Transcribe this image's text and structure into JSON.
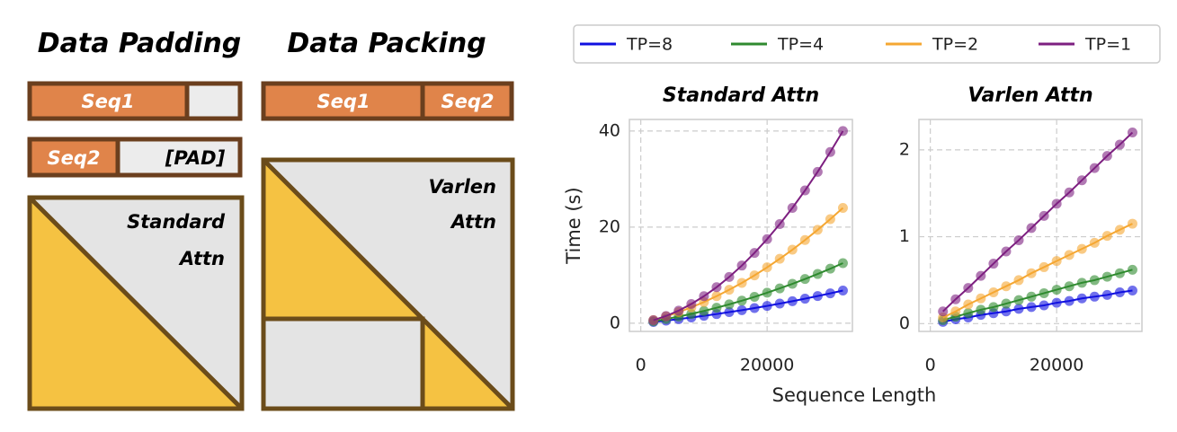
{
  "diagram": {
    "padding": {
      "title": "Data Padding",
      "seq1": "Seq1",
      "seq2": "Seq2",
      "pad": "[PAD]",
      "attn": [
        "Standard",
        "Attn"
      ]
    },
    "packing": {
      "title": "Data Packing",
      "seq1": "Seq1",
      "seq2": "Seq2",
      "attn": [
        "Varlen",
        "Attn"
      ]
    }
  },
  "chart_data": [
    {
      "type": "scatter",
      "title": "Standard Attn",
      "ylabel": "Time (s)",
      "xlabel": "Sequence Length",
      "x": [
        2000,
        4000,
        6000,
        8000,
        10000,
        12000,
        14000,
        16000,
        18000,
        20000,
        22000,
        24000,
        26000,
        28000,
        30000,
        32000
      ],
      "xlim": [
        -1800,
        33500
      ],
      "xticks": [
        0,
        20000
      ],
      "ylim": [
        -1.7,
        42.4
      ],
      "yticks": [
        0,
        20,
        40
      ],
      "grid": true,
      "series": [
        {
          "name": "TP=8",
          "color": "#1010e0",
          "values": [
            0.27,
            0.55,
            0.86,
            1.19,
            1.54,
            1.91,
            2.31,
            2.72,
            3.16,
            3.61,
            4.09,
            4.59,
            5.11,
            5.65,
            6.22,
            6.8
          ]
        },
        {
          "name": "TP=4",
          "color": "#2f8a2f",
          "values": [
            0.41,
            0.88,
            1.39,
            1.95,
            2.56,
            3.22,
            3.93,
            4.69,
            5.49,
            6.35,
            7.25,
            8.2,
            9.2,
            10.25,
            11.35,
            12.5
          ]
        },
        {
          "name": "TP=2",
          "color": "#f5a732",
          "values": [
            0.66,
            1.43,
            2.31,
            3.3,
            4.41,
            5.63,
            6.96,
            8.4,
            9.96,
            11.63,
            13.41,
            15.3,
            17.31,
            19.43,
            21.66,
            24
          ]
        },
        {
          "name": "TP=1",
          "color": "#7d1f80",
          "values": [
            0.63,
            1.5,
            2.63,
            4,
            5.63,
            7.5,
            9.63,
            12,
            14.63,
            17.5,
            20.63,
            24,
            27.63,
            31.5,
            35.63,
            40
          ]
        }
      ]
    },
    {
      "type": "scatter",
      "title": "Varlen Attn",
      "x": [
        2000,
        4000,
        6000,
        8000,
        10000,
        12000,
        14000,
        16000,
        18000,
        20000,
        22000,
        24000,
        26000,
        28000,
        30000,
        32000
      ],
      "xlim": [
        -1800,
        33500
      ],
      "xticks": [
        0,
        20000
      ],
      "ylim": [
        -0.09,
        2.35
      ],
      "yticks": [
        0,
        1,
        2
      ],
      "grid": true,
      "series": [
        {
          "color": "#1010e0",
          "values": [
            0.02,
            0.05,
            0.07,
            0.1,
            0.12,
            0.14,
            0.17,
            0.19,
            0.21,
            0.24,
            0.26,
            0.29,
            0.31,
            0.33,
            0.36,
            0.38
          ]
        },
        {
          "color": "#2f8a2f",
          "values": [
            0.04,
            0.08,
            0.12,
            0.16,
            0.19,
            0.23,
            0.27,
            0.31,
            0.35,
            0.39,
            0.43,
            0.47,
            0.5,
            0.54,
            0.58,
            0.62
          ]
        },
        {
          "color": "#f5a732",
          "values": [
            0.07,
            0.14,
            0.22,
            0.29,
            0.36,
            0.43,
            0.5,
            0.58,
            0.65,
            0.72,
            0.79,
            0.86,
            0.93,
            1.01,
            1.08,
            1.15
          ]
        },
        {
          "color": "#7d1f80",
          "values": [
            0.14,
            0.28,
            0.41,
            0.55,
            0.69,
            0.83,
            0.96,
            1.1,
            1.24,
            1.38,
            1.51,
            1.65,
            1.79,
            1.93,
            2.06,
            2.2
          ]
        }
      ]
    }
  ]
}
